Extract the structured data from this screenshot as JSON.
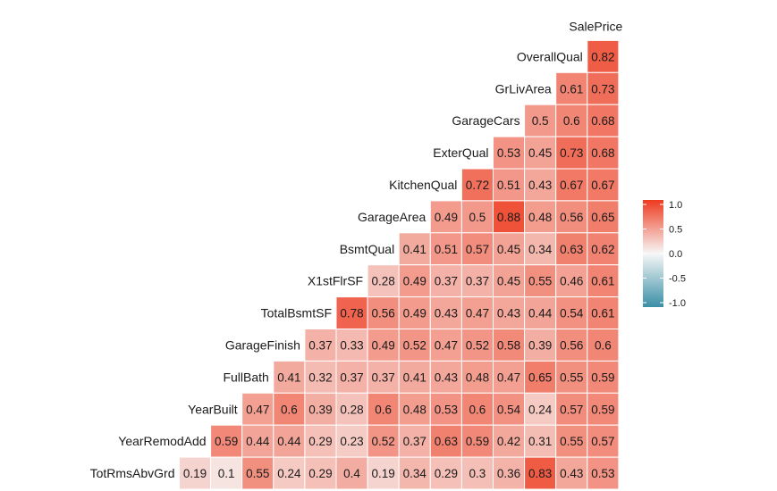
{
  "chart_data": {
    "type": "heatmap",
    "variables": [
      "SalePrice",
      "OverallQual",
      "GrLivArea",
      "GarageCars",
      "ExterQual",
      "KitchenQual",
      "GarageArea",
      "BsmtQual",
      "X1stFlrSF",
      "TotalBsmtSF",
      "GarageFinish",
      "FullBath",
      "YearBuilt",
      "YearRemodAdd",
      "TotRmsAbvGrd"
    ],
    "rows": [
      {
        "label": "OverallQual",
        "values": [
          0.82
        ]
      },
      {
        "label": "GrLivArea",
        "values": [
          0.61,
          0.73
        ]
      },
      {
        "label": "GarageCars",
        "values": [
          0.5,
          0.6,
          0.68
        ]
      },
      {
        "label": "ExterQual",
        "values": [
          0.53,
          0.45,
          0.73,
          0.68
        ]
      },
      {
        "label": "KitchenQual",
        "values": [
          0.72,
          0.51,
          0.43,
          0.67,
          0.67
        ]
      },
      {
        "label": "GarageArea",
        "values": [
          0.49,
          0.5,
          0.88,
          0.48,
          0.56,
          0.65
        ]
      },
      {
        "label": "BsmtQual",
        "values": [
          0.41,
          0.51,
          0.57,
          0.45,
          0.34,
          0.63,
          0.62
        ]
      },
      {
        "label": "X1stFlrSF",
        "values": [
          0.28,
          0.49,
          0.37,
          0.37,
          0.45,
          0.55,
          0.46,
          0.61
        ]
      },
      {
        "label": "TotalBsmtSF",
        "values": [
          0.78,
          0.56,
          0.49,
          0.43,
          0.47,
          0.43,
          0.44,
          0.54,
          0.61
        ]
      },
      {
        "label": "GarageFinish",
        "values": [
          0.37,
          0.33,
          0.49,
          0.52,
          0.47,
          0.52,
          0.58,
          0.39,
          0.56,
          0.6
        ]
      },
      {
        "label": "FullBath",
        "values": [
          0.41,
          0.32,
          0.37,
          0.37,
          0.41,
          0.43,
          0.48,
          0.47,
          0.65,
          0.55,
          0.59
        ]
      },
      {
        "label": "YearBuilt",
        "values": [
          0.47,
          0.6,
          0.39,
          0.28,
          0.6,
          0.48,
          0.53,
          0.6,
          0.54,
          0.24,
          0.57,
          0.59
        ]
      },
      {
        "label": "YearRemodAdd",
        "values": [
          0.59,
          0.44,
          0.44,
          0.29,
          0.23,
          0.52,
          0.37,
          0.63,
          0.59,
          0.42,
          0.31,
          0.55,
          0.57
        ]
      },
      {
        "label": "TotRmsAbvGrd",
        "values": [
          0.19,
          0.1,
          0.55,
          0.24,
          0.29,
          0.4,
          0.19,
          0.34,
          0.29,
          0.3,
          0.36,
          0.83,
          0.43,
          0.53
        ]
      }
    ],
    "legend": {
      "ticks": [
        "1.0",
        "0.5",
        "0.0",
        "-0.5",
        "-1.0"
      ],
      "range": [
        -1,
        1
      ],
      "placement": "right"
    },
    "colors": {
      "low": "#3a8fa6",
      "mid": "#f7f7f7",
      "high": "#ee3b1f",
      "cell_border": "#ffffff"
    },
    "title": "",
    "xlabel": "",
    "ylabel": ""
  }
}
